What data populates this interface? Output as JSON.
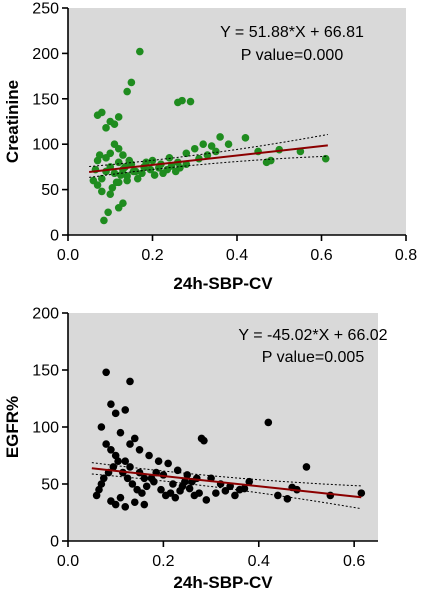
{
  "chart_data": [
    {
      "type": "scatter",
      "title": "",
      "xlabel": "24h-SBP-CV",
      "ylabel": "Creatinine",
      "xlim": [
        0,
        0.8
      ],
      "ylim": [
        0,
        250
      ],
      "xticks": [
        "0.0",
        "0.2",
        "0.4",
        "0.6",
        "0.8"
      ],
      "yticks": [
        "0",
        "50",
        "100",
        "150",
        "200",
        "250"
      ],
      "equation": "Y = 51.88*X + 66.81",
      "p_value": "P value=0.000",
      "fit": {
        "slope": 51.88,
        "intercept": 66.81,
        "x_range": [
          0.05,
          0.615
        ]
      },
      "ci_halfwidth": [
        6,
        2.5,
        12
      ],
      "colors": {
        "points": "#1f8c1f",
        "fit": "#8b0000",
        "ci": "#000000",
        "plot_bg": "#d9d9d9"
      },
      "grid": false,
      "series": [
        {
          "points": [
            [
              0.07,
              55
            ],
            [
              0.08,
              62
            ],
            [
              0.09,
              70
            ],
            [
              0.1,
              75
            ],
            [
              0.11,
              68
            ],
            [
              0.12,
              80
            ],
            [
              0.13,
              72
            ],
            [
              0.14,
              65
            ],
            [
              0.15,
              78
            ],
            [
              0.1,
              90
            ],
            [
              0.12,
              95
            ],
            [
              0.09,
              85
            ],
            [
              0.11,
              100
            ],
            [
              0.13,
              88
            ],
            [
              0.08,
              48
            ],
            [
              0.1,
              45
            ],
            [
              0.12,
              58
            ],
            [
              0.14,
              60
            ],
            [
              0.16,
              70
            ],
            [
              0.18,
              75
            ],
            [
              0.2,
              82
            ],
            [
              0.22,
              78
            ],
            [
              0.24,
              85
            ],
            [
              0.26,
              80
            ],
            [
              0.28,
              90
            ],
            [
              0.3,
              95
            ],
            [
              0.32,
              100
            ],
            [
              0.34,
              98
            ],
            [
              0.36,
              108
            ],
            [
              0.45,
              92
            ],
            [
              0.47,
              80
            ],
            [
              0.48,
              82
            ],
            [
              0.55,
              92
            ],
            [
              0.61,
              84
            ],
            [
              0.17,
              202
            ],
            [
              0.15,
              168
            ],
            [
              0.14,
              158
            ],
            [
              0.27,
              148
            ],
            [
              0.29,
              147
            ],
            [
              0.26,
              146
            ],
            [
              0.07,
              132
            ],
            [
              0.08,
              135
            ],
            [
              0.1,
              125
            ],
            [
              0.12,
              130
            ],
            [
              0.09,
              118
            ],
            [
              0.11,
              122
            ],
            [
              0.085,
              16
            ],
            [
              0.095,
              25
            ],
            [
              0.12,
              30
            ],
            [
              0.13,
              35
            ],
            [
              0.06,
              60
            ],
            [
              0.065,
              72
            ],
            [
              0.07,
              82
            ],
            [
              0.075,
              88
            ],
            [
              0.105,
              52
            ],
            [
              0.115,
              58
            ],
            [
              0.125,
              66
            ],
            [
              0.135,
              75
            ],
            [
              0.145,
              82
            ],
            [
              0.155,
              70
            ],
            [
              0.165,
              62
            ],
            [
              0.175,
              68
            ],
            [
              0.185,
              80
            ],
            [
              0.195,
              72
            ],
            [
              0.205,
              66
            ],
            [
              0.215,
              74
            ],
            [
              0.225,
              68
            ],
            [
              0.235,
              72
            ],
            [
              0.245,
              76
            ],
            [
              0.255,
              70
            ],
            [
              0.265,
              74
            ],
            [
              0.28,
              78
            ],
            [
              0.31,
              84
            ],
            [
              0.33,
              88
            ],
            [
              0.35,
              92
            ],
            [
              0.38,
              100
            ],
            [
              0.42,
              107
            ],
            [
              0.5,
              94
            ]
          ]
        }
      ]
    },
    {
      "type": "scatter",
      "title": "",
      "xlabel": "24h-SBP-CV",
      "ylabel": "EGFR%",
      "xlim": [
        0,
        0.65
      ],
      "ylim": [
        0,
        200
      ],
      "xticks": [
        "0.0",
        "0.2",
        "0.4",
        "0.6"
      ],
      "yticks": [
        "0",
        "50",
        "100",
        "150",
        "200"
      ],
      "equation": "Y = -45.02*X + 66.02",
      "p_value": "P value=0.005",
      "fit": {
        "slope": -45.02,
        "intercept": 66.02,
        "x_range": [
          0.05,
          0.615
        ]
      },
      "ci_halfwidth": [
        5,
        2.5,
        10
      ],
      "colors": {
        "points": "#000000",
        "fit": "#8b0000",
        "ci": "#000000",
        "plot_bg": "#d9d9d9"
      },
      "grid": false,
      "series": [
        {
          "points": [
            [
              0.08,
              148
            ],
            [
              0.13,
              140
            ],
            [
              0.09,
              120
            ],
            [
              0.1,
              112
            ],
            [
              0.12,
              115
            ],
            [
              0.42,
              104
            ],
            [
              0.07,
              100
            ],
            [
              0.11,
              95
            ],
            [
              0.14,
              90
            ],
            [
              0.08,
              85
            ],
            [
              0.09,
              80
            ],
            [
              0.1,
              75
            ],
            [
              0.12,
              70
            ],
            [
              0.13,
              65
            ],
            [
              0.15,
              60
            ],
            [
              0.16,
              55
            ],
            [
              0.18,
              52
            ],
            [
              0.2,
              58
            ],
            [
              0.22,
              50
            ],
            [
              0.24,
              48
            ],
            [
              0.26,
              52
            ],
            [
              0.28,
              90
            ],
            [
              0.285,
              88
            ],
            [
              0.3,
              55
            ],
            [
              0.32,
              50
            ],
            [
              0.34,
              48
            ],
            [
              0.36,
              45
            ],
            [
              0.38,
              52
            ],
            [
              0.44,
              40
            ],
            [
              0.46,
              37
            ],
            [
              0.47,
              47
            ],
            [
              0.48,
              45
            ],
            [
              0.5,
              65
            ],
            [
              0.55,
              40
            ],
            [
              0.615,
              42
            ],
            [
              0.06,
              40
            ],
            [
              0.065,
              45
            ],
            [
              0.07,
              50
            ],
            [
              0.075,
              55
            ],
            [
              0.085,
              60
            ],
            [
              0.095,
              65
            ],
            [
              0.105,
              70
            ],
            [
              0.115,
              60
            ],
            [
              0.125,
              55
            ],
            [
              0.135,
              50
            ],
            [
              0.145,
              45
            ],
            [
              0.155,
              42
            ],
            [
              0.165,
              48
            ],
            [
              0.175,
              55
            ],
            [
              0.185,
              60
            ],
            [
              0.195,
              45
            ],
            [
              0.205,
              40
            ],
            [
              0.215,
              42
            ],
            [
              0.225,
              38
            ],
            [
              0.235,
              44
            ],
            [
              0.245,
              52
            ],
            [
              0.255,
              46
            ],
            [
              0.265,
              40
            ],
            [
              0.275,
              42
            ],
            [
              0.29,
              36
            ],
            [
              0.31,
              42
            ],
            [
              0.33,
              44
            ],
            [
              0.35,
              40
            ],
            [
              0.37,
              46
            ],
            [
              0.1,
              32
            ],
            [
              0.12,
              30
            ],
            [
              0.14,
              34
            ],
            [
              0.16,
              32
            ],
            [
              0.09,
              35
            ],
            [
              0.11,
              38
            ],
            [
              0.13,
              85
            ],
            [
              0.15,
              80
            ],
            [
              0.17,
              75
            ],
            [
              0.19,
              70
            ],
            [
              0.21,
              68
            ],
            [
              0.23,
              62
            ],
            [
              0.25,
              58
            ],
            [
              0.27,
              55
            ]
          ]
        }
      ]
    }
  ]
}
